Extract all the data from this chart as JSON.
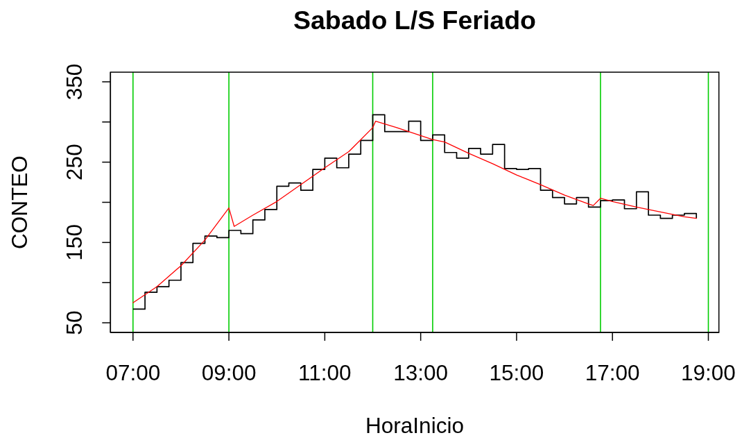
{
  "chart_data": {
    "type": "step",
    "title": "Sabado L/S Feriado",
    "xlabel": "HoraInicio",
    "ylabel": "CONTEO",
    "xlim": [
      6.53,
      19.22
    ],
    "ylim": [
      38,
      362
    ],
    "xticks": [
      {
        "value": 7,
        "label": "07:00"
      },
      {
        "value": 9,
        "label": "09:00"
      },
      {
        "value": 11,
        "label": "11:00"
      },
      {
        "value": 13,
        "label": "13:00"
      },
      {
        "value": 15,
        "label": "15:00"
      },
      {
        "value": 17,
        "label": "17:00"
      },
      {
        "value": 19,
        "label": "19:00"
      }
    ],
    "yticks": [
      50,
      {
        "value": 100,
        "label": null
      },
      150,
      {
        "value": 200,
        "label": null
      },
      250,
      {
        "value": 300,
        "label": null
      },
      350
    ],
    "series": [
      {
        "type": "step",
        "color": "#000000",
        "x": [
          7,
          7.25,
          7.5,
          7.75,
          8,
          8.25,
          8.5,
          8.75,
          9,
          9.25,
          9.5,
          9.75,
          10,
          10.25,
          10.5,
          10.75,
          11,
          11.25,
          11.5,
          11.75,
          12,
          12.25,
          12.5,
          12.75,
          13,
          13.25,
          13.5,
          13.75,
          14,
          14.25,
          14.5,
          14.75,
          15,
          15.25,
          15.5,
          15.75,
          16,
          16.25,
          16.5,
          16.75,
          17,
          17.25,
          17.5,
          17.75,
          18,
          18.25,
          18.5,
          18.75
        ],
        "values": [
          67,
          88,
          95,
          103,
          125,
          149,
          158,
          156,
          165,
          161,
          178,
          191,
          220,
          224,
          215,
          241,
          255,
          243,
          260,
          277,
          309,
          288,
          288,
          301,
          277,
          284,
          262,
          255,
          267,
          260,
          272,
          242,
          241,
          242,
          215,
          206,
          198,
          206,
          194,
          202,
          203,
          192,
          213,
          184,
          180,
          184,
          186,
          180
        ]
      },
      {
        "type": "line",
        "color": "#ff0000",
        "x": [
          7,
          7.5,
          8,
          8.5,
          9,
          9.11,
          9.5,
          10,
          10.5,
          11,
          11.5,
          12,
          12.06,
          12.5,
          13,
          13.25,
          13.5,
          14,
          14.5,
          15,
          15.5,
          16,
          16.5,
          16.6,
          16.75,
          17,
          17.5,
          18,
          18.5,
          18.75
        ],
        "values": [
          75,
          95,
          121,
          153,
          193,
          170,
          184,
          201,
          222,
          243,
          263,
          293,
          301,
          293,
          283,
          278,
          275,
          261,
          248,
          234,
          222,
          209,
          198,
          196,
          205,
          201,
          194,
          188,
          182,
          180
        ]
      }
    ],
    "ref_lines": [
      {
        "axis": "x",
        "value": 7,
        "color": "#00cd00"
      },
      {
        "axis": "x",
        "value": 9,
        "color": "#00cd00"
      },
      {
        "axis": "x",
        "value": 12,
        "color": "#00cd00"
      },
      {
        "axis": "x",
        "value": 13.25,
        "color": "#00cd00"
      },
      {
        "axis": "x",
        "value": 16.75,
        "color": "#00cd00"
      },
      {
        "axis": "x",
        "value": 19,
        "color": "#00cd00"
      }
    ]
  }
}
